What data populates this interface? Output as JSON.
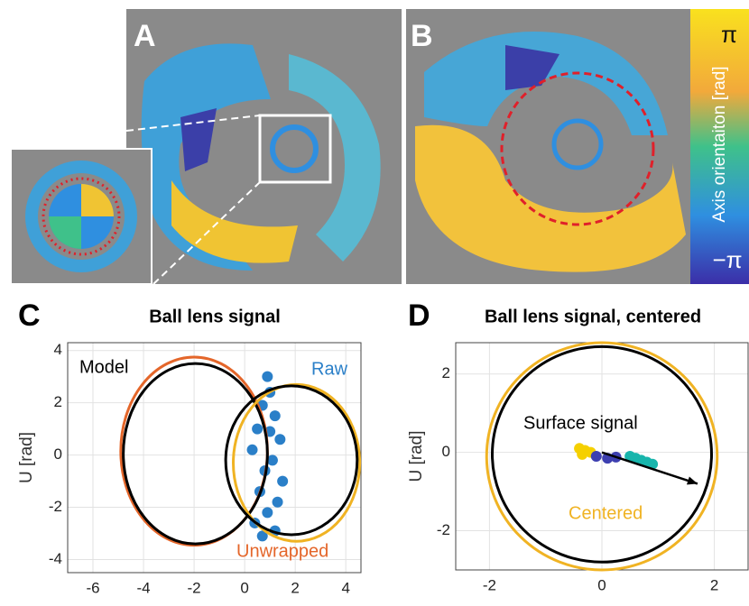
{
  "figure": {
    "panels": [
      "A",
      "B",
      "C",
      "D"
    ],
    "colorbar": {
      "max_label": "π",
      "label": "Axis orientaiton [rad]",
      "min_label": "−π"
    }
  },
  "chart_data": [
    {
      "type": "scatter",
      "panel": "C",
      "title": "Ball lens signal",
      "y_label": "U [rad]",
      "xlim": [
        -7,
        4.6
      ],
      "ylim": [
        -4.5,
        4.3
      ],
      "xticks": [
        -6,
        -4,
        -2,
        0,
        2,
        4
      ],
      "yticks": [
        -4,
        -2,
        0,
        2,
        4
      ],
      "grid": true,
      "ellipses": [
        {
          "cx": -2,
          "cy": 0.15,
          "rx": 2.9,
          "ry": 3.6,
          "color": "#e4662a"
        },
        {
          "cx": -1.95,
          "cy": 0.05,
          "rx": 2.85,
          "ry": 3.45,
          "color": "#000000"
        },
        {
          "cx": 2.05,
          "cy": -0.3,
          "rx": 2.5,
          "ry": 3.0,
          "color": "#f0b323"
        },
        {
          "cx": 1.85,
          "cy": -0.2,
          "rx": 2.6,
          "ry": 2.85,
          "color": "#000000"
        }
      ],
      "series": [
        {
          "name": "Raw",
          "color": "#2a7fc8",
          "x": [
            0.9,
            1.0,
            0.7,
            1.2,
            0.5,
            1.4,
            0.3,
            1.1,
            0.8,
            1.5,
            0.6,
            1.3,
            0.9,
            0.4,
            1.2,
            0.7,
            1.0
          ],
          "y": [
            3.0,
            2.4,
            1.9,
            1.5,
            1.0,
            0.6,
            0.2,
            -0.2,
            -0.6,
            -1.0,
            -1.4,
            -1.8,
            -2.2,
            -2.6,
            -2.9,
            -3.1,
            0.9
          ]
        }
      ],
      "annotations": [
        {
          "text": "Model",
          "color": "#000000"
        },
        {
          "text": "Unwrapped",
          "color": "#e4662a"
        }
      ]
    },
    {
      "type": "scatter",
      "panel": "D",
      "title": "Ball lens signal, centered",
      "y_label": "U [rad]",
      "xlim": [
        -2.6,
        2.6
      ],
      "ylim": [
        -3,
        2.8
      ],
      "xticks": [
        -2,
        0,
        2
      ],
      "yticks": [
        -2,
        0,
        2
      ],
      "grid": true,
      "ellipses": [
        {
          "cx": 0,
          "cy": -0.1,
          "rx": 2.05,
          "ry": 2.9,
          "color": "#f0b323"
        },
        {
          "cx": 0,
          "cy": -0.05,
          "rx": 1.95,
          "ry": 2.75,
          "color": "#000000"
        }
      ],
      "series": [
        {
          "name": "Surface signal",
          "color": "#f5d000",
          "x": [
            -0.4,
            -0.3,
            -0.2,
            -0.35
          ],
          "y": [
            0.1,
            0.05,
            0.0,
            -0.05
          ]
        },
        {
          "name": "Centered",
          "color": "#18b5ac",
          "x": [
            0.5,
            0.7,
            0.9,
            0.8,
            0.6
          ],
          "y": [
            -0.1,
            -0.2,
            -0.3,
            -0.25,
            -0.15
          ]
        },
        {
          "color": "#3d3fb0",
          "x": [
            -0.1,
            0.1,
            0.25
          ],
          "y": [
            -0.1,
            -0.15,
            -0.12
          ]
        }
      ],
      "arrow": {
        "x": [
          0,
          1.7
        ],
        "y": [
          0,
          -0.8
        ],
        "color": "#000000"
      }
    }
  ]
}
